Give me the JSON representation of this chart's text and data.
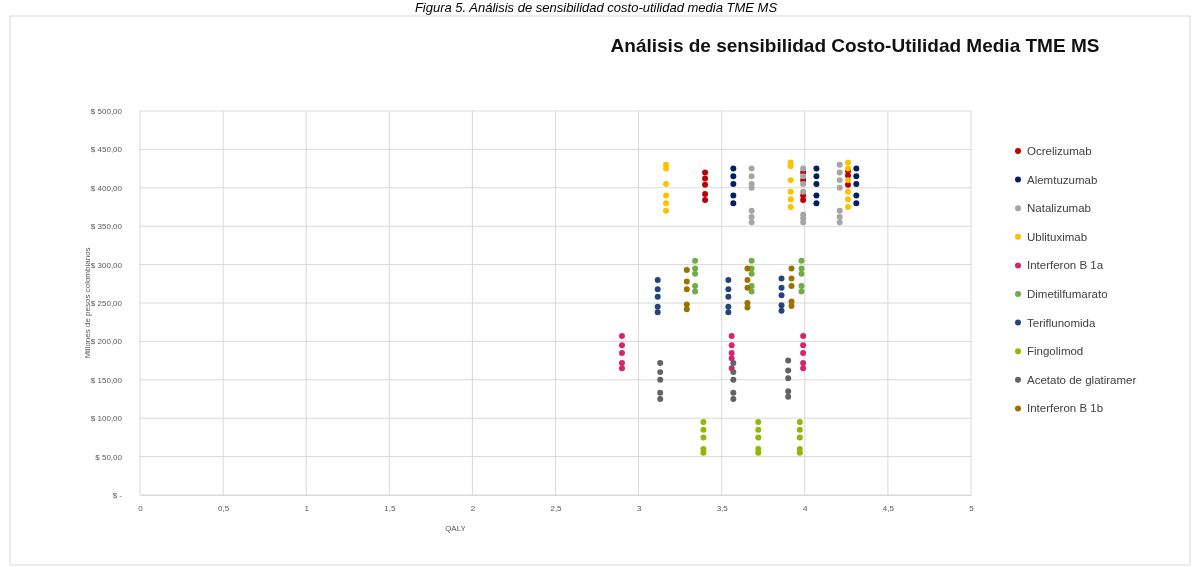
{
  "chart_data": {
    "type": "scatter",
    "title": "Análisis de sensibilidad Costo-Utilidad Media TME MS",
    "annotations": [
      "Figura 5. Análisis de sensibilidad costo-utilidad media TME MS"
    ],
    "xlabel": "QALY",
    "ylabel": "Millones de pesos colombianos",
    "xlim": [
      0,
      5
    ],
    "ylim": [
      0,
      500
    ],
    "xticks": [
      0,
      {
        "value": 0.5,
        "label": "0,5"
      },
      1,
      {
        "value": 1.5,
        "label": "1,5"
      },
      2,
      {
        "value": 2.5,
        "label": "2,5"
      },
      3,
      {
        "value": 3.5,
        "label": "3,5"
      },
      4,
      {
        "value": 4.5,
        "label": "4,5"
      },
      5
    ],
    "yticks": [
      {
        "value": 0,
        "label": "$ -"
      },
      {
        "value": 50,
        "label": "$ 50,00"
      },
      {
        "value": 100,
        "label": "$ 100,00"
      },
      {
        "value": 150,
        "label": "$ 150,00"
      },
      {
        "value": 200,
        "label": "$ 200,00"
      },
      {
        "value": 250,
        "label": "$ 250,00"
      },
      {
        "value": 300,
        "label": "$ 300,00"
      },
      {
        "value": 350,
        "label": "$ 350,00"
      },
      {
        "value": 400,
        "label": "$ 400,00"
      },
      {
        "value": 450,
        "label": "$ 450,00"
      },
      {
        "value": 500,
        "label": "$ 500,00"
      }
    ],
    "grid": true,
    "legend": "right",
    "marker": "circle",
    "series": [
      {
        "name": "Ocrelizumab",
        "color": "#c00000",
        "x": [
          3.4,
          3.4,
          3.4,
          3.4,
          3.4,
          3.99,
          3.99,
          3.99,
          3.99,
          4.26,
          4.26,
          4.26
        ],
        "values": [
          420,
          412,
          404,
          392,
          384,
          420,
          410,
          390,
          384,
          422,
          416,
          404
        ]
      },
      {
        "name": "Alemtuzumab",
        "color": "#002060",
        "x": [
          3.57,
          3.57,
          3.57,
          3.57,
          3.57,
          4.07,
          4.07,
          4.07,
          4.07,
          4.07,
          4.31,
          4.31,
          4.31,
          4.31,
          4.31
        ],
        "values": [
          425,
          415,
          405,
          390,
          380,
          425,
          415,
          405,
          390,
          380,
          425,
          415,
          405,
          390,
          380
        ]
      },
      {
        "name": "Natalizumab",
        "color": "#a5a5a5",
        "x": [
          3.68,
          3.68,
          3.68,
          3.68,
          3.68,
          3.68,
          3.68,
          3.99,
          3.99,
          3.99,
          3.99,
          3.99,
          3.99,
          3.99,
          4.21,
          4.21,
          4.21,
          4.21,
          4.21,
          4.21,
          4.21
        ],
        "values": [
          425,
          415,
          405,
          400,
          370,
          362,
          355,
          425,
          415,
          405,
          395,
          365,
          360,
          355,
          430,
          420,
          410,
          400,
          370,
          362,
          355
        ]
      },
      {
        "name": "Ublituximab",
        "color": "#ffc000",
        "x": [
          3.165,
          3.165,
          3.165,
          3.165,
          3.165,
          3.165,
          3.915,
          3.915,
          3.915,
          3.915,
          3.915,
          3.915,
          4.26,
          4.26,
          4.26,
          4.26,
          4.26,
          4.26
        ],
        "values": [
          430,
          425,
          405,
          390,
          380,
          370,
          433,
          428,
          410,
          395,
          385,
          375,
          433,
          425,
          410,
          395,
          385,
          375
        ]
      },
      {
        "name": "Interferon B 1a",
        "color": "#d6246e",
        "x": [
          2.9,
          2.9,
          2.9,
          2.9,
          2.9,
          3.56,
          3.56,
          3.56,
          3.56,
          3.56,
          3.99,
          3.99,
          3.99,
          3.99,
          3.99
        ],
        "values": [
          207,
          195,
          185,
          172,
          165,
          207,
          195,
          185,
          178,
          165,
          207,
          195,
          185,
          172,
          165
        ]
      },
      {
        "name": "Dimetilfumarato",
        "color": "#70ad47",
        "x": [
          3.34,
          3.34,
          3.34,
          3.34,
          3.34,
          3.68,
          3.68,
          3.68,
          3.68,
          3.68,
          3.98,
          3.98,
          3.98,
          3.98,
          3.98
        ],
        "values": [
          305,
          295,
          288,
          272,
          265,
          305,
          295,
          288,
          272,
          265,
          305,
          295,
          288,
          272,
          265
        ]
      },
      {
        "name": "Teriflunomida",
        "color": "#264478",
        "x": [
          3.115,
          3.115,
          3.115,
          3.115,
          3.115,
          3.54,
          3.54,
          3.54,
          3.54,
          3.54,
          3.86,
          3.86,
          3.86,
          3.86,
          3.86
        ],
        "values": [
          280,
          268,
          258,
          245,
          238,
          280,
          268,
          258,
          245,
          238,
          282,
          270,
          260,
          247,
          240
        ]
      },
      {
        "name": "Fingolimod",
        "color": "#92b800",
        "x": [
          3.39,
          3.39,
          3.39,
          3.39,
          3.39,
          3.72,
          3.72,
          3.72,
          3.72,
          3.72,
          3.97,
          3.97,
          3.97,
          3.97,
          3.97
        ],
        "values": [
          95,
          85,
          75,
          60,
          55,
          95,
          85,
          75,
          60,
          55,
          95,
          85,
          75,
          60,
          55
        ]
      },
      {
        "name": "Acetato de glatiramer",
        "color": "#636363",
        "x": [
          3.13,
          3.13,
          3.13,
          3.13,
          3.13,
          3.57,
          3.57,
          3.57,
          3.57,
          3.57,
          3.9,
          3.9,
          3.9,
          3.9,
          3.9
        ],
        "values": [
          172,
          160,
          150,
          133,
          125,
          172,
          160,
          150,
          133,
          125,
          175,
          162,
          152,
          135,
          128
        ]
      },
      {
        "name": "Interferon B 1b",
        "color": "#997300",
        "x": [
          3.29,
          3.29,
          3.29,
          3.29,
          3.29,
          3.655,
          3.655,
          3.655,
          3.655,
          3.655,
          3.92,
          3.92,
          3.92,
          3.92,
          3.92
        ],
        "values": [
          293,
          278,
          268,
          248,
          242,
          295,
          280,
          270,
          250,
          244,
          295,
          282,
          272,
          252,
          246
        ]
      }
    ]
  }
}
